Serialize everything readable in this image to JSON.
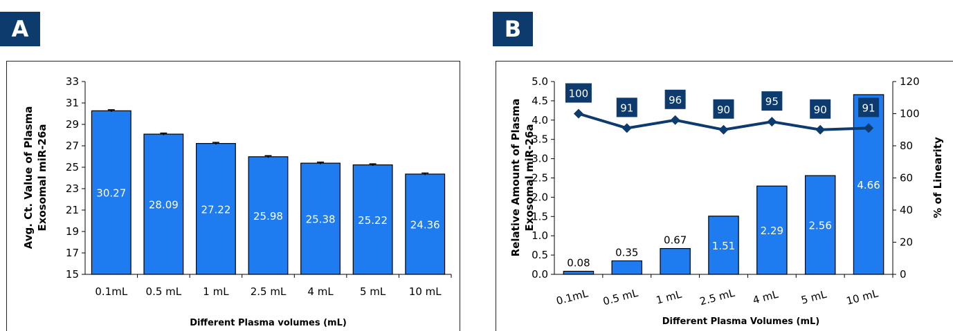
{
  "panels": [
    {
      "label": "A"
    },
    {
      "label": "B"
    }
  ],
  "chart_data": [
    {
      "type": "bar",
      "panel": "A",
      "categories": [
        "0.1mL",
        "0.5 mL",
        "1 mL",
        "2.5 mL",
        "4 mL",
        "5 mL",
        "10 mL"
      ],
      "values": [
        30.27,
        28.09,
        27.22,
        25.98,
        25.38,
        25.22,
        24.36
      ],
      "data_labels": [
        "30.27",
        "28.09",
        "27.22",
        "25.98",
        "25.38",
        "25.22",
        "24.36"
      ],
      "error_bars": true,
      "xlabel": "Different Plasma volumes (mL)",
      "ylabel_line1": "Avg. Ct. Value of Plasma",
      "ylabel_line2": "Exosomal miR-26a",
      "ylim": [
        15,
        33
      ],
      "yticks": [
        "15",
        "17",
        "19",
        "21",
        "23",
        "25",
        "27",
        "29",
        "31",
        "33"
      ],
      "bar_color": "#1e7bf0"
    },
    {
      "type": "bar+line",
      "panel": "B",
      "categories": [
        "0.1mL",
        "0.5 mL",
        "1 mL",
        "2.5 mL",
        "4 mL",
        "5 mL",
        "10 mL"
      ],
      "bar_values": [
        0.08,
        0.35,
        0.67,
        1.51,
        2.29,
        2.56,
        4.66
      ],
      "bar_labels": [
        "0.08",
        "0.35",
        "0.67",
        "1.51",
        "2.29",
        "2.56",
        "4.66"
      ],
      "line_values": [
        100,
        91,
        96,
        90,
        95,
        90,
        91
      ],
      "line_labels": [
        "100",
        "91",
        "96",
        "90",
        "95",
        "90",
        "91"
      ],
      "xlabel": "Different Plasma Volumes (mL)",
      "ylabel_line1": "Relative Amount of Plasma",
      "ylabel_line2": "Exosomal miR-26a",
      "y2label": "% of Linearity",
      "ylim": [
        0,
        5
      ],
      "y2lim": [
        0,
        120
      ],
      "yticks": [
        "0.0",
        "0.5",
        "1.0",
        "1.5",
        "2.0",
        "2.5",
        "3.0",
        "3.5",
        "4.0",
        "4.5",
        "5.0"
      ],
      "y2ticks": [
        "0",
        "20",
        "40",
        "60",
        "80",
        "100",
        "120"
      ],
      "bar_color": "#1e7bf0",
      "line_color": "#0d3b6e"
    }
  ]
}
